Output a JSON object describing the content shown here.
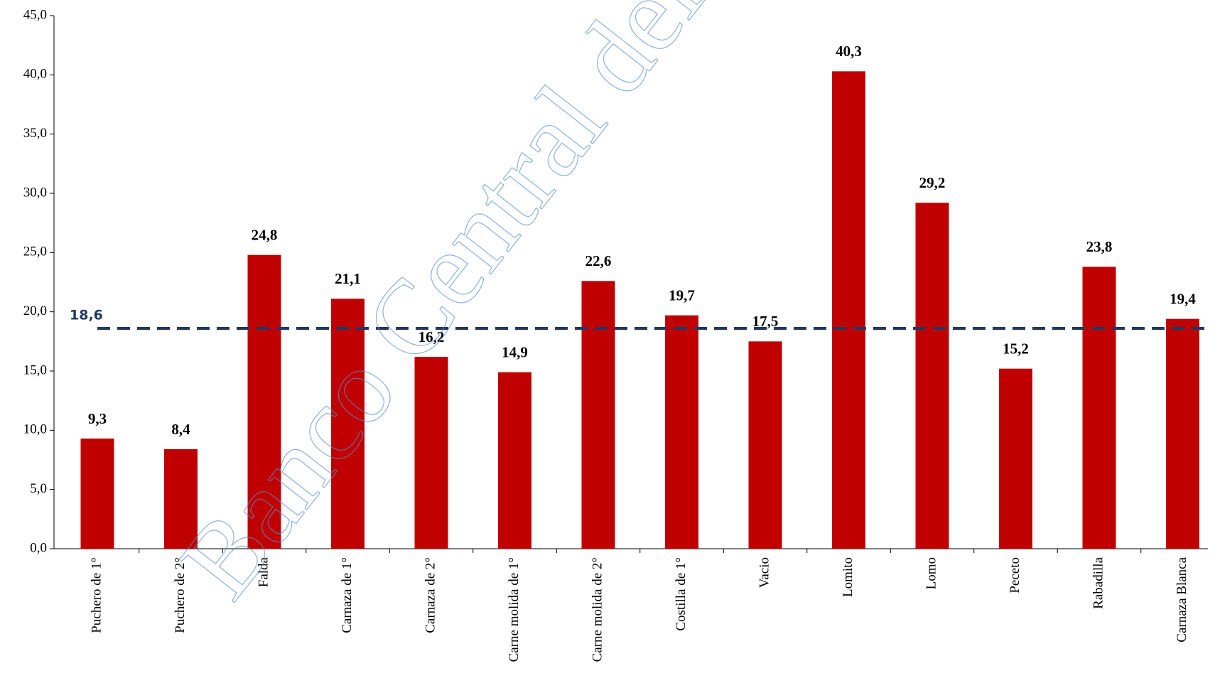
{
  "chart_data": {
    "type": "bar",
    "categories": [
      "Puchero de 1°",
      "Puchero de 2°",
      "Falda",
      "Carnaza de 1°",
      "Carnaza de 2°",
      "Carne molida de 1°",
      "Carne molida de 2°",
      "Costilla de 1°",
      "Vacio",
      "Lomito",
      "Lomo",
      "Peceto",
      "Rabadilla",
      "Carnaza Blanca"
    ],
    "values": [
      9.3,
      8.4,
      24.8,
      21.1,
      16.2,
      14.9,
      22.6,
      19.7,
      17.5,
      40.3,
      29.2,
      15.2,
      23.8,
      19.4
    ],
    "value_labels": [
      "9,3",
      "8,4",
      "24,8",
      "21,1",
      "16,2",
      "14,9",
      "22,6",
      "19,7",
      "17,5",
      "40,3",
      "29,2",
      "15,2",
      "23,8",
      "19,4"
    ],
    "color": "#c00000",
    "ylim": [
      0,
      45
    ],
    "yticks": [
      {
        "value": 0,
        "label": "0,0"
      },
      {
        "value": 5,
        "label": "5,0"
      },
      {
        "value": 10,
        "label": "10,0"
      },
      {
        "value": 15,
        "label": "15,0"
      },
      {
        "value": 20,
        "label": "20,0"
      },
      {
        "value": 25,
        "label": "25,0"
      },
      {
        "value": 30,
        "label": "30,0"
      },
      {
        "value": 35,
        "label": "35,0"
      },
      {
        "value": 40,
        "label": "40,0"
      },
      {
        "value": 45,
        "label": "45,0"
      }
    ],
    "grid": false,
    "reference_line": {
      "value": 18.6,
      "label": "18,6",
      "color": "#1f3864"
    },
    "watermark": "Banco Central del Paraguay"
  }
}
